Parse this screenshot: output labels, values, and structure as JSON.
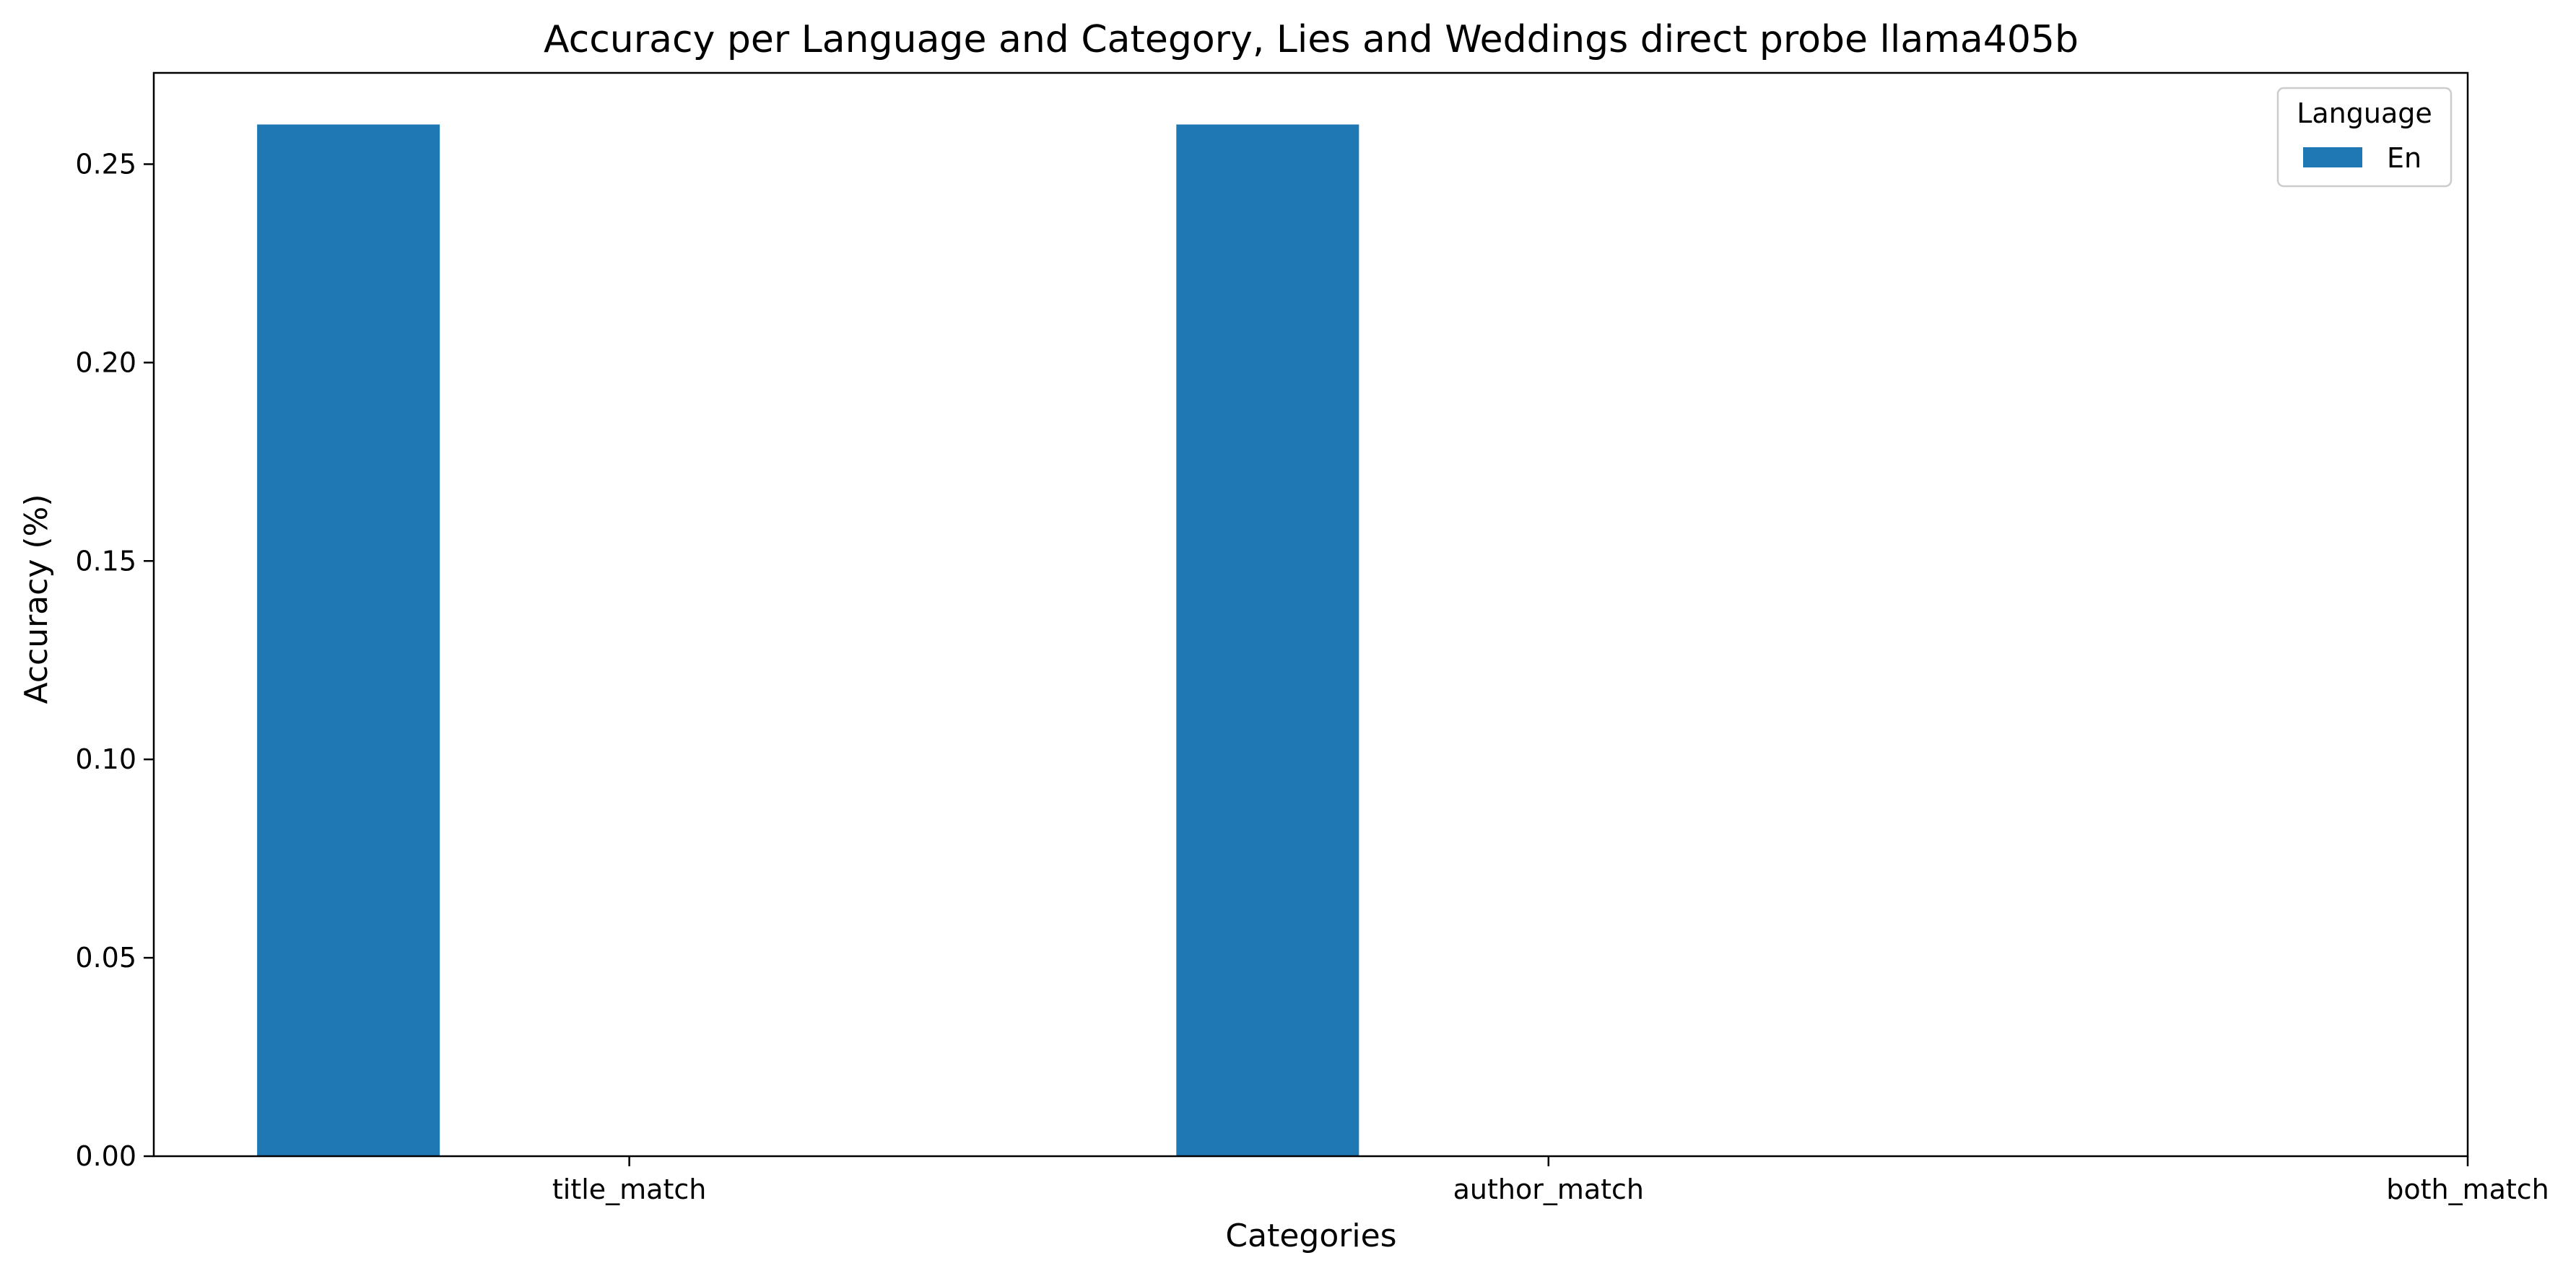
{
  "chart_data": {
    "type": "bar",
    "title": "Accuracy per Language and Category, Lies and Weddings direct probe llama405b",
    "xlabel": "Categories",
    "ylabel": "Accuracy (%)",
    "categories": [
      "title_match",
      "author_match",
      "both_match"
    ],
    "series": [
      {
        "name": "En",
        "color": "#1f77b4",
        "values": [
          0.26,
          0.26,
          0.0
        ]
      }
    ],
    "ylim": [
      0,
      0.273
    ],
    "yticks": [
      0.0,
      0.05,
      0.1,
      0.15,
      0.2,
      0.25
    ],
    "ytick_labels": [
      "0.00",
      "0.05",
      "0.10",
      "0.15",
      "0.20",
      "0.25"
    ],
    "legend": {
      "title": "Language",
      "placement": "top-right"
    },
    "grid": false
  }
}
